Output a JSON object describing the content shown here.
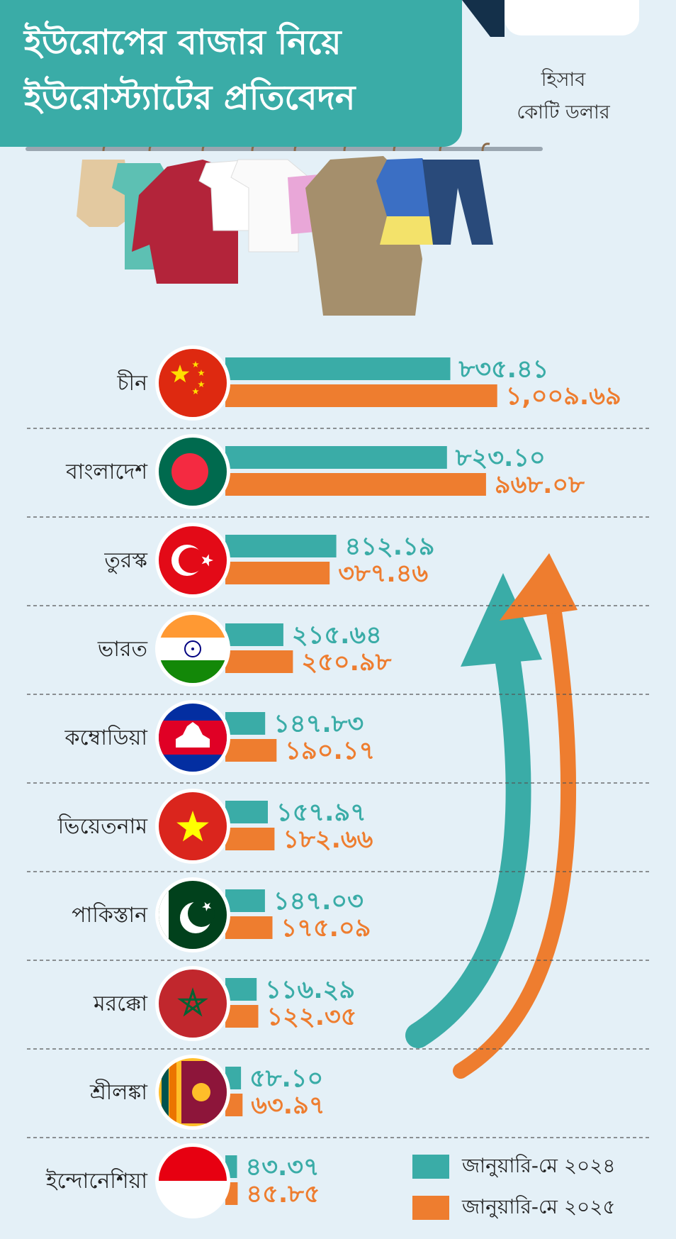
{
  "header": {
    "title_line1": "ইউরোপের বাজার নিয়ে",
    "title_line2": "ইউরোস্ট্যাটের প্রতিবেদন",
    "unit_line1": "হিসাব",
    "unit_line2": "কোটি ডলার"
  },
  "colors": {
    "series_2024": "#3aaca7",
    "series_2025": "#ee7d2f",
    "background": "#e4f0f7"
  },
  "illustration": "clothes-on-hangers",
  "chart_data": {
    "type": "bar",
    "orientation": "horizontal",
    "categories": [
      "চীন",
      "বাংলাদেশ",
      "তুরস্ক",
      "ভারত",
      "কম্বোডিয়া",
      "ভিয়েতনাম",
      "পাকিস্তান",
      "মরক্কো",
      "শ্রীলঙ্কা",
      "ইন্দোনেশিয়া"
    ],
    "flags": [
      "china-flag-icon",
      "bangladesh-flag-icon",
      "turkey-flag-icon",
      "india-flag-icon",
      "cambodia-flag-icon",
      "vietnam-flag-icon",
      "pakistan-flag-icon",
      "morocco-flag-icon",
      "sri-lanka-flag-icon",
      "indonesia-flag-icon"
    ],
    "series": [
      {
        "name": "জানুয়ারি-মে ২০২৪",
        "values": [
          835.41,
          823.1,
          412.19,
          215.64,
          147.83,
          157.97,
          147.03,
          116.29,
          58.1,
          43.37
        ],
        "labels": [
          "৮৩৫.৪১",
          "৮২৩.১০",
          "৪১২.১৯",
          "২১৫.৬৪",
          "১৪৭.৮৩",
          "১৫৭.৯৭",
          "১৪৭.০৩",
          "১১৬.২৯",
          "৫৮.১০",
          "৪৩.৩৭"
        ]
      },
      {
        "name": "জানুয়ারি-মে ২০২৫",
        "values": [
          1009.69,
          968.08,
          387.46,
          250.98,
          190.17,
          182.66,
          175.09,
          122.35,
          63.97,
          45.85
        ],
        "labels": [
          "১,০০৯.৬৯",
          "৯৬৮.০৮",
          "৩৮৭.৪৬",
          "২৫০.৯৮",
          "১৯০.১৭",
          "১৮২.৬৬",
          "১৭৫.০৯",
          "১২২.৩৫",
          "৬৩.৯৭",
          "৪৫.৮৫"
        ]
      }
    ],
    "legend_position": "bottom-right"
  }
}
